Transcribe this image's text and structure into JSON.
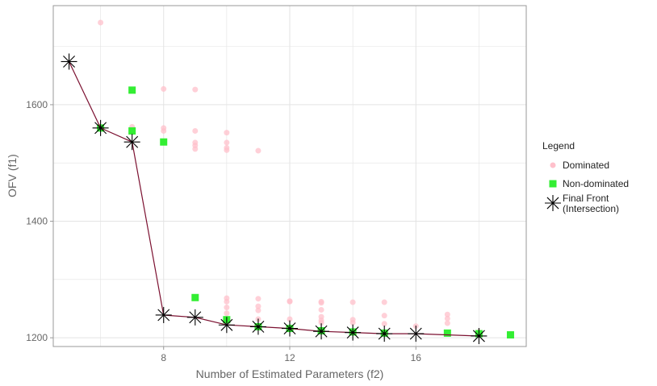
{
  "chart_data": {
    "type": "scatter",
    "xlabel": "Number of Estimated Parameters (f2)",
    "ylabel": "OFV (f1)",
    "xlim": [
      4.5,
      19.5
    ],
    "ylim": [
      1185,
      1770
    ],
    "x_ticks": [
      8,
      12,
      16
    ],
    "y_ticks": [
      1200,
      1400,
      1600
    ],
    "grid": true,
    "legend": {
      "title": "Legend",
      "placement": "right",
      "entries": [
        "Dominated",
        "Non-dominated",
        "Final Front\n(Intersection)"
      ]
    },
    "colors": {
      "dominated": "#ffc0cb",
      "non_dominated": "#33ee33",
      "final_front": "#000000",
      "front_line": "#7b1030",
      "grid": "#e3e3e3",
      "panel_border": "#999999"
    },
    "series": [
      {
        "name": "Dominated",
        "points": [
          [
            6,
            1741
          ],
          [
            7,
            1562
          ],
          [
            8,
            1627
          ],
          [
            8,
            1560
          ],
          [
            8,
            1555
          ],
          [
            9,
            1626
          ],
          [
            9,
            1555
          ],
          [
            9,
            1535
          ],
          [
            9,
            1530
          ],
          [
            9,
            1524
          ],
          [
            10,
            1552
          ],
          [
            10,
            1535
          ],
          [
            10,
            1526
          ],
          [
            10,
            1522
          ],
          [
            11,
            1521
          ],
          [
            10,
            1268
          ],
          [
            10,
            1262
          ],
          [
            10,
            1252
          ],
          [
            10,
            1242
          ],
          [
            11,
            1267
          ],
          [
            11,
            1254
          ],
          [
            11,
            1247
          ],
          [
            11,
            1232
          ],
          [
            12,
            1263
          ],
          [
            12,
            1262
          ],
          [
            12,
            1232
          ],
          [
            13,
            1262
          ],
          [
            13,
            1260
          ],
          [
            13,
            1248
          ],
          [
            13,
            1236
          ],
          [
            13,
            1230
          ],
          [
            13,
            1226
          ],
          [
            14,
            1261
          ],
          [
            14,
            1231
          ],
          [
            14,
            1226
          ],
          [
            15,
            1261
          ],
          [
            15,
            1238
          ],
          [
            15,
            1224
          ],
          [
            16,
            1220
          ],
          [
            17,
            1240
          ],
          [
            17,
            1233
          ],
          [
            17,
            1225
          ],
          [
            18,
            1210
          ]
        ]
      },
      {
        "name": "Non-dominated",
        "points": [
          [
            6,
            1560
          ],
          [
            7,
            1625
          ],
          [
            7,
            1555
          ],
          [
            8,
            1536
          ],
          [
            9,
            1269
          ],
          [
            10,
            1231
          ],
          [
            11,
            1219
          ],
          [
            12,
            1216
          ],
          [
            13,
            1212
          ],
          [
            14,
            1210
          ],
          [
            15,
            1208
          ],
          [
            17,
            1208
          ],
          [
            18,
            1207
          ],
          [
            19,
            1205
          ]
        ]
      },
      {
        "name": "Final Front\n(Intersection)",
        "points": [
          [
            5,
            1674
          ],
          [
            6,
            1560
          ],
          [
            7,
            1536
          ],
          [
            8,
            1239
          ],
          [
            9,
            1235
          ],
          [
            10,
            1222
          ],
          [
            11,
            1219
          ],
          [
            12,
            1216
          ],
          [
            13,
            1211
          ],
          [
            14,
            1209
          ],
          [
            15,
            1207
          ],
          [
            16,
            1207
          ],
          [
            18,
            1203
          ]
        ]
      }
    ]
  }
}
